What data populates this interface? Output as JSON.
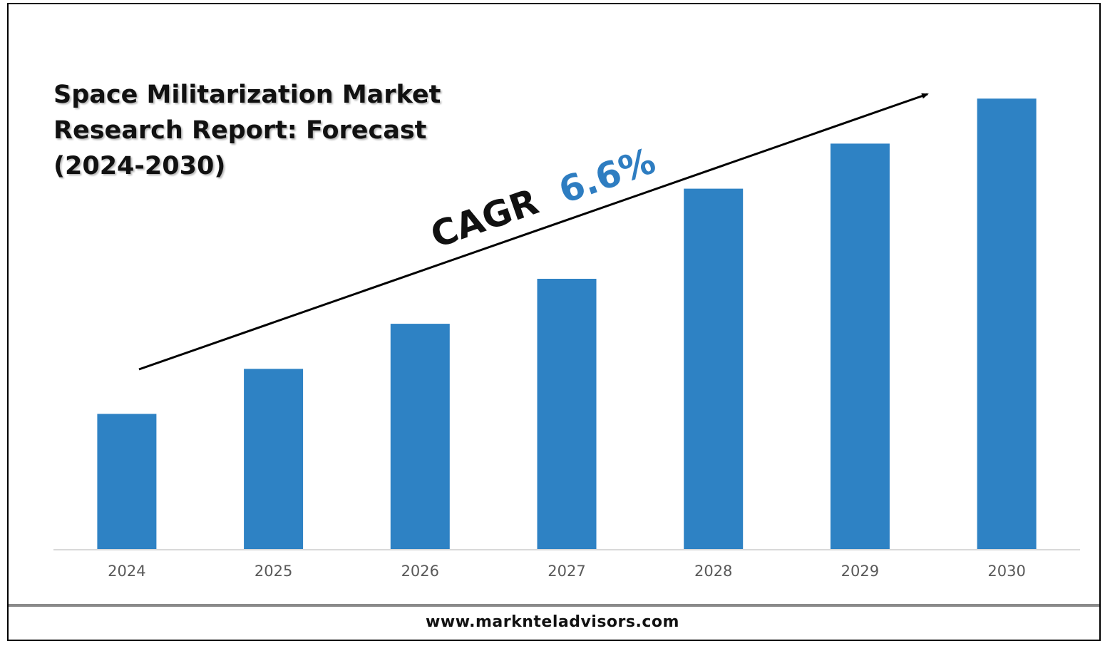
{
  "title": "Space Militarization Market\nResearch Report: Forecast\n(2024-2030)",
  "cagr": {
    "label": "CAGR",
    "value": "6.6%",
    "value_color": "#2E7DC1",
    "label_color": "#111111"
  },
  "footer": {
    "url": "www.marknteladvisors.com"
  },
  "chart_data": {
    "type": "bar",
    "title": "Space Militarization Market Research Report: Forecast (2024-2030)",
    "categories": [
      "2024",
      "2025",
      "2026",
      "2027",
      "2028",
      "2029",
      "2030"
    ],
    "values": [
      3.0,
      4.0,
      5.0,
      6.0,
      8.0,
      9.0,
      10.0
    ],
    "ylim": [
      0,
      10.4
    ],
    "xlabel": "",
    "ylabel": "",
    "grid": false,
    "legend": "none",
    "bar_color": "#2E82C4",
    "annotation": "CAGR 6.6%"
  }
}
